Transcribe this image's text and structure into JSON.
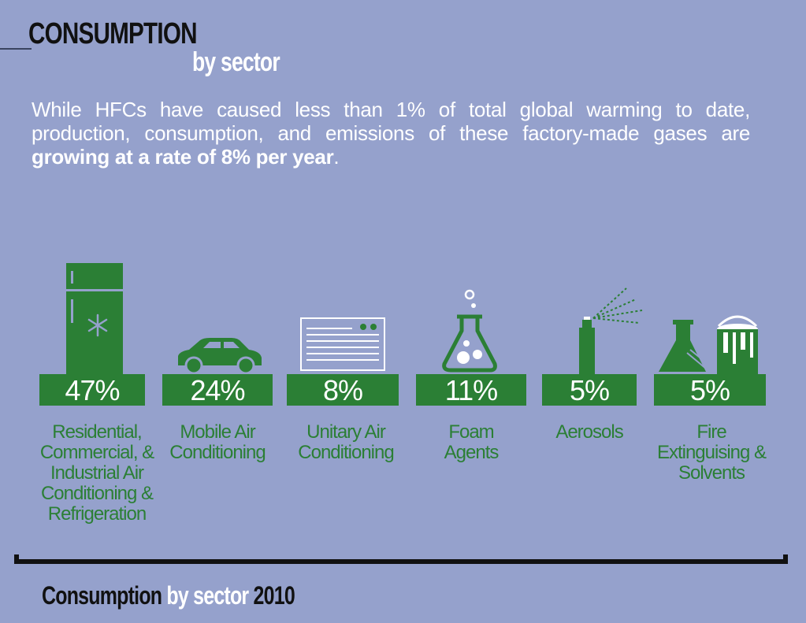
{
  "header": {
    "title": "CONSUMPTION",
    "subtitle": "by sector",
    "intro_part1": "While HFCs have caused less than 1% of total global warming to date, production, consumption, and emissions of these factory-made gases are ",
    "intro_bold": "growing at a rate of 8% per year",
    "intro_end": "."
  },
  "sectors": [
    {
      "value": "47%",
      "label": "Residential, Commercial, & Industrial Air Conditioning & Refrigeration",
      "icon": "refrigerator-icon"
    },
    {
      "value": "24%",
      "label": "Mobile Air Conditioning",
      "icon": "car-icon"
    },
    {
      "value": "8%",
      "label": "Unitary Air Conditioning",
      "icon": "air-conditioner-icon"
    },
    {
      "value": "11%",
      "label": "Foam Agents",
      "icon": "flask-icon"
    },
    {
      "value": "5%",
      "label": "Aerosols",
      "icon": "spray-can-icon"
    },
    {
      "value": "5%",
      "label": "Fire Extinguising & Solvents",
      "icon": "beaker-and-bucket-icon"
    }
  ],
  "footer": {
    "part1": "Consumption",
    "part2": " by sector",
    "part3": " 2010"
  },
  "colors": {
    "background": "#95a1cc",
    "accent_green": "#2b7f35",
    "text_dark": "#111111",
    "text_light": "#ffffff"
  }
}
